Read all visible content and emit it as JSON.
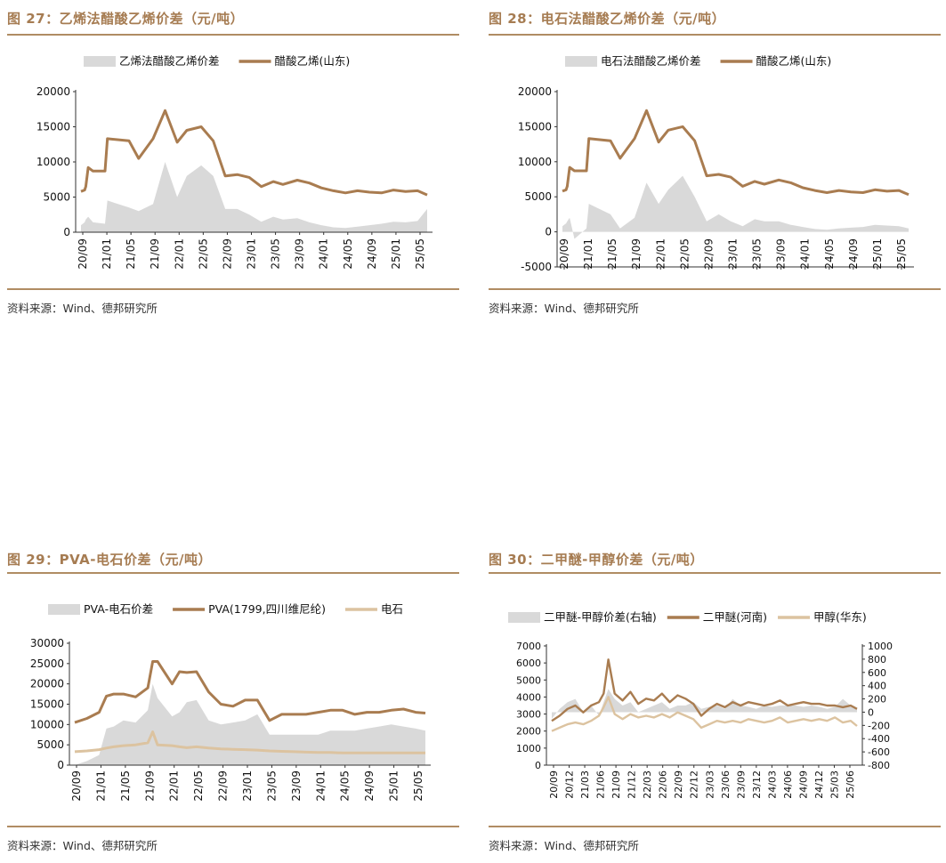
{
  "colors": {
    "accent": "#a67c52",
    "line_dark": "#a97c50",
    "line_light": "#dcc3a0",
    "area": "#d9d9d9"
  },
  "source_label": "资料来源：Wind、德邦研究所",
  "charts": [
    {
      "title": "图 27：乙烯法醋酸乙烯价差（元/吨）",
      "source": "资料来源：Wind、德邦研究所"
    },
    {
      "title": "图 28：电石法醋酸乙烯价差（元/吨）",
      "source": "资料来源：Wind、德邦研究所"
    },
    {
      "title": "图 29：PVA-电石价差（元/吨）",
      "source": "资料来源：Wind、德邦研究所"
    },
    {
      "title": "图 30：二甲醚-甲醇价差（元/吨）",
      "source": "资料来源：Wind、德邦研究所"
    }
  ],
  "chart_data": [
    {
      "type": "line",
      "title": "乙烯法醋酸乙烯价差",
      "legend": [
        "乙烯法醋酸乙烯价差",
        "醋酸乙烯(山东)"
      ],
      "ylim": [
        0,
        20000
      ],
      "yticks": [
        "20000",
        "15000",
        "10000",
        "5000",
        "0"
      ],
      "xticks": [
        "20/09",
        "21/01",
        "21/05",
        "21/09",
        "22/01",
        "22/05",
        "22/09",
        "23/01",
        "23/05",
        "23/09",
        "24/01",
        "24/05",
        "24/09",
        "25/01",
        "25/05"
      ],
      "x": [
        0,
        0.15,
        0.2,
        0.3,
        0.5,
        1.0,
        1.1,
        2.0,
        2.4,
        3.0,
        3.5,
        4.0,
        4.4,
        5.0,
        5.5,
        6.0,
        6.5,
        7.0,
        7.5,
        8.0,
        8.4,
        9.0,
        9.5,
        10.0,
        10.5,
        11.0,
        11.5,
        12.0,
        12.5,
        13.0,
        13.5,
        14.0,
        14.4
      ],
      "series": [
        {
          "name": "醋酸乙烯(山东)",
          "kind": "line",
          "values": [
            5800,
            6000,
            6500,
            9200,
            8700,
            8700,
            13300,
            13000,
            10500,
            13300,
            17300,
            12800,
            14500,
            15000,
            13000,
            8000,
            8200,
            7800,
            6500,
            7200,
            6800,
            7400,
            7000,
            6300,
            5900,
            5600,
            5900,
            5700,
            5600,
            6000,
            5800,
            5900,
            5300
          ]
        },
        {
          "name": "乙烯法醋酸乙烯价差",
          "kind": "area",
          "values": [
            1000,
            1400,
            1800,
            2200,
            1400,
            1200,
            4500,
            3500,
            3000,
            4000,
            10000,
            5000,
            8000,
            9500,
            8000,
            3300,
            3300,
            2500,
            1500,
            2200,
            1800,
            2000,
            1400,
            1000,
            700,
            600,
            800,
            1000,
            1200,
            1500,
            1400,
            1600,
            3300
          ]
        }
      ]
    },
    {
      "type": "line",
      "title": "电石法醋酸乙烯价差",
      "legend": [
        "电石法醋酸乙烯价差",
        "醋酸乙烯(山东)"
      ],
      "ylim": [
        -5000,
        20000
      ],
      "yticks": [
        "20000",
        "15000",
        "10000",
        "5000",
        "0",
        "-5000"
      ],
      "xticks": [
        "20/09",
        "21/01",
        "21/05",
        "21/09",
        "22/01",
        "22/05",
        "22/09",
        "23/01",
        "23/05",
        "23/09",
        "24/01",
        "24/05",
        "24/09",
        "25/01",
        "25/05"
      ],
      "x": [
        0,
        0.15,
        0.2,
        0.3,
        0.5,
        1.0,
        1.1,
        2.0,
        2.4,
        3.0,
        3.5,
        4.0,
        4.4,
        5.0,
        5.5,
        6.0,
        6.5,
        7.0,
        7.5,
        8.0,
        8.4,
        9.0,
        9.5,
        10.0,
        10.5,
        11.0,
        11.5,
        12.0,
        12.5,
        13.0,
        13.5,
        14.0,
        14.4
      ],
      "series": [
        {
          "name": "醋酸乙烯(山东)",
          "kind": "line",
          "values": [
            5800,
            6000,
            6500,
            9200,
            8700,
            8700,
            13300,
            13000,
            10500,
            13300,
            17300,
            12800,
            14500,
            15000,
            13000,
            8000,
            8200,
            7800,
            6500,
            7200,
            6800,
            7400,
            7000,
            6300,
            5900,
            5600,
            5900,
            5700,
            5600,
            6000,
            5800,
            5900,
            5300
          ]
        },
        {
          "name": "电石法醋酸乙烯价差",
          "kind": "area",
          "values": [
            800,
            1200,
            1500,
            2000,
            -1000,
            500,
            4000,
            2500,
            500,
            2000,
            7000,
            4000,
            6000,
            8000,
            5000,
            1500,
            2500,
            1500,
            800,
            1800,
            1500,
            1500,
            1000,
            700,
            400,
            300,
            500,
            600,
            700,
            1000,
            900,
            800,
            500
          ]
        }
      ]
    },
    {
      "type": "line",
      "title": "PVA-电石价差",
      "legend": [
        "PVA-电石价差",
        "PVA(1799,四川维尼纶)",
        "电石"
      ],
      "ylim": [
        0,
        30000
      ],
      "yticks": [
        "30000",
        "25000",
        "20000",
        "15000",
        "10000",
        "5000",
        "0"
      ],
      "xticks": [
        "20/09",
        "21/01",
        "21/05",
        "21/09",
        "22/01",
        "22/05",
        "22/09",
        "23/01",
        "23/05",
        "23/09",
        "24/01",
        "24/05",
        "24/09",
        "25/01",
        "25/05"
      ],
      "x": [
        0,
        0.5,
        1.0,
        1.3,
        1.6,
        2.0,
        2.5,
        3.0,
        3.2,
        3.4,
        4.0,
        4.3,
        4.6,
        5.0,
        5.5,
        6.0,
        6.5,
        7.0,
        7.5,
        8.0,
        8.5,
        9.0,
        9.5,
        10.0,
        10.5,
        11.0,
        11.5,
        12.0,
        12.5,
        13.0,
        13.5,
        14.0,
        14.4
      ],
      "series": [
        {
          "name": "PVA(1799,四川维尼纶)",
          "kind": "line",
          "values": [
            10500,
            11500,
            13000,
            17000,
            17500,
            17500,
            16800,
            19000,
            25500,
            25500,
            20000,
            23000,
            22800,
            23000,
            18000,
            15000,
            14500,
            16000,
            16000,
            11000,
            12500,
            12500,
            12500,
            13000,
            13500,
            13500,
            12500,
            13000,
            13000,
            13500,
            13800,
            13000,
            12800
          ]
        },
        {
          "name": "PVA-电石价差",
          "kind": "area",
          "values": [
            0,
            1000,
            2500,
            9000,
            9500,
            11000,
            10500,
            13500,
            20000,
            16500,
            12000,
            13000,
            15500,
            16000,
            11000,
            10000,
            10500,
            11000,
            12500,
            7500,
            7500,
            7500,
            7500,
            7500,
            8500,
            8500,
            8500,
            9000,
            9500,
            10000,
            9500,
            9000,
            8500
          ]
        },
        {
          "name": "电石",
          "kind": "line",
          "values": [
            3300,
            3500,
            3800,
            4200,
            4500,
            4800,
            5000,
            5500,
            8200,
            5000,
            4800,
            4500,
            4300,
            4500,
            4200,
            4000,
            3900,
            3800,
            3700,
            3500,
            3400,
            3300,
            3200,
            3100,
            3100,
            3000,
            3000,
            3000,
            3000,
            3000,
            3000,
            3000,
            3000
          ]
        }
      ]
    },
    {
      "type": "line",
      "title": "二甲醚-甲醇价差",
      "legend": [
        "二甲醚-甲醇价差(右轴)",
        "二甲醚(河南)",
        "甲醇(华东)"
      ],
      "ylim": [
        0,
        7000
      ],
      "ylim_right": [
        -800,
        1000
      ],
      "yticks": [
        "7000",
        "6000",
        "5000",
        "4000",
        "3000",
        "2000",
        "1000",
        "0"
      ],
      "yticks_right": [
        "1000",
        "800",
        "600",
        "400",
        "200",
        "0",
        "-200",
        "-400",
        "-600",
        "-800"
      ],
      "xticks": [
        "20/09",
        "20/12",
        "21/03",
        "21/06",
        "21/09",
        "21/12",
        "22/03",
        "22/06",
        "22/09",
        "22/12",
        "23/03",
        "23/06",
        "23/09",
        "23/12",
        "24/03",
        "24/06",
        "24/09",
        "24/12",
        "25/03",
        "25/06"
      ],
      "x": [
        0,
        0.5,
        1.0,
        1.5,
        2.0,
        2.5,
        3.0,
        3.3,
        3.6,
        4.0,
        4.5,
        5.0,
        5.5,
        6.0,
        6.5,
        7.0,
        7.5,
        8.0,
        8.5,
        9.0,
        9.5,
        10.0,
        10.5,
        11.0,
        11.5,
        12.0,
        12.5,
        13.0,
        13.5,
        14.0,
        14.5,
        15.0,
        15.5,
        16.0,
        16.5,
        17.0,
        17.5,
        18.0,
        18.5,
        19.0,
        19.4
      ],
      "series": [
        {
          "name": "二甲醚(河南)",
          "kind": "line",
          "values": [
            2600,
            2900,
            3300,
            3500,
            3100,
            3500,
            3700,
            4200,
            6200,
            4200,
            3800,
            4300,
            3600,
            3900,
            3800,
            4200,
            3700,
            4100,
            3900,
            3600,
            2900,
            3300,
            3600,
            3400,
            3700,
            3500,
            3700,
            3600,
            3500,
            3600,
            3800,
            3500,
            3600,
            3700,
            3600,
            3600,
            3500,
            3500,
            3400,
            3500,
            3300
          ]
        },
        {
          "name": "甲醇(华东)",
          "kind": "line",
          "values": [
            2000,
            2200,
            2400,
            2500,
            2400,
            2600,
            2900,
            3400,
            4000,
            3000,
            2700,
            3000,
            2800,
            2900,
            2800,
            3000,
            2800,
            3100,
            2900,
            2700,
            2200,
            2400,
            2600,
            2500,
            2600,
            2500,
            2700,
            2600,
            2500,
            2600,
            2800,
            2500,
            2600,
            2700,
            2600,
            2700,
            2600,
            2800,
            2500,
            2600,
            2300
          ]
        },
        {
          "name": "二甲醚-甲醇价差(右轴)",
          "kind": "area",
          "values": [
            -100,
            50,
            150,
            200,
            0,
            100,
            -50,
            150,
            350,
            200,
            100,
            150,
            0,
            50,
            100,
            150,
            50,
            100,
            100,
            150,
            50,
            80,
            100,
            50,
            200,
            100,
            80,
            50,
            100,
            80,
            100,
            100,
            100,
            80,
            100,
            80,
            50,
            80,
            200,
            100,
            50
          ]
        }
      ]
    }
  ]
}
